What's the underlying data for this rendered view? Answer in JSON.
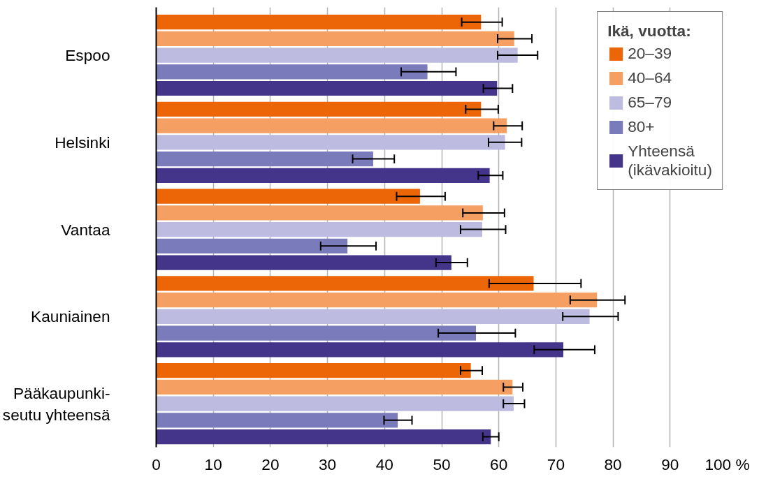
{
  "chart_data": {
    "type": "bar",
    "orientation": "horizontal",
    "categories": [
      "Espoo",
      "Helsinki",
      "Vantaa",
      "Kauniainen",
      "Pääkaupunki-\nseutu yhteensä"
    ],
    "legend_title": "Ikä, vuotta:",
    "legend": "top right",
    "grid": "x",
    "xlim": [
      0,
      100
    ],
    "xticks": [
      0,
      10,
      20,
      30,
      40,
      50,
      60,
      70,
      80,
      90,
      {
        "value": 100,
        "label": "100 %"
      }
    ],
    "series": [
      {
        "name": "20–39",
        "color": "#ec6608",
        "values": [
          56.9,
          56.9,
          46.2,
          66.1,
          55.1
        ],
        "errors": [
          [
            53.5,
            60.6
          ],
          [
            54.2,
            59.9
          ],
          [
            42.1,
            50.6
          ],
          [
            58.3,
            74.4
          ],
          [
            53.3,
            57.1
          ]
        ]
      },
      {
        "name": "40–64",
        "color": "#f59f62",
        "values": [
          62.7,
          61.4,
          57.2,
          77.2,
          62.4
        ],
        "errors": [
          [
            59.8,
            65.8
          ],
          [
            59.1,
            64.1
          ],
          [
            53.7,
            61.0
          ],
          [
            72.5,
            82.1
          ],
          [
            60.8,
            64.2
          ]
        ]
      },
      {
        "name": "65–79",
        "color": "#bdbbe0",
        "values": [
          63.3,
          61.1,
          57.1,
          75.9,
          62.6
        ],
        "errors": [
          [
            59.8,
            66.8
          ],
          [
            58.2,
            64.0
          ],
          [
            53.3,
            61.2
          ],
          [
            71.2,
            80.9
          ],
          [
            60.8,
            64.5
          ]
        ]
      },
      {
        "name": "80+",
        "color": "#7a7bbb",
        "values": [
          47.5,
          38.0,
          33.5,
          56.0,
          42.3
        ],
        "errors": [
          [
            42.9,
            52.5
          ],
          [
            34.4,
            41.7
          ],
          [
            28.8,
            38.5
          ],
          [
            49.4,
            62.9
          ],
          [
            39.9,
            44.8
          ]
        ]
      },
      {
        "name": "Yhteensä\n(ikävakioitu)",
        "color": "#44358b",
        "values": [
          59.7,
          58.4,
          51.7,
          71.3,
          58.6
        ],
        "errors": [
          [
            57.3,
            62.4
          ],
          [
            56.4,
            60.7
          ],
          [
            49.0,
            54.5
          ],
          [
            66.2,
            76.8
          ],
          [
            57.2,
            60.0
          ]
        ]
      }
    ]
  }
}
